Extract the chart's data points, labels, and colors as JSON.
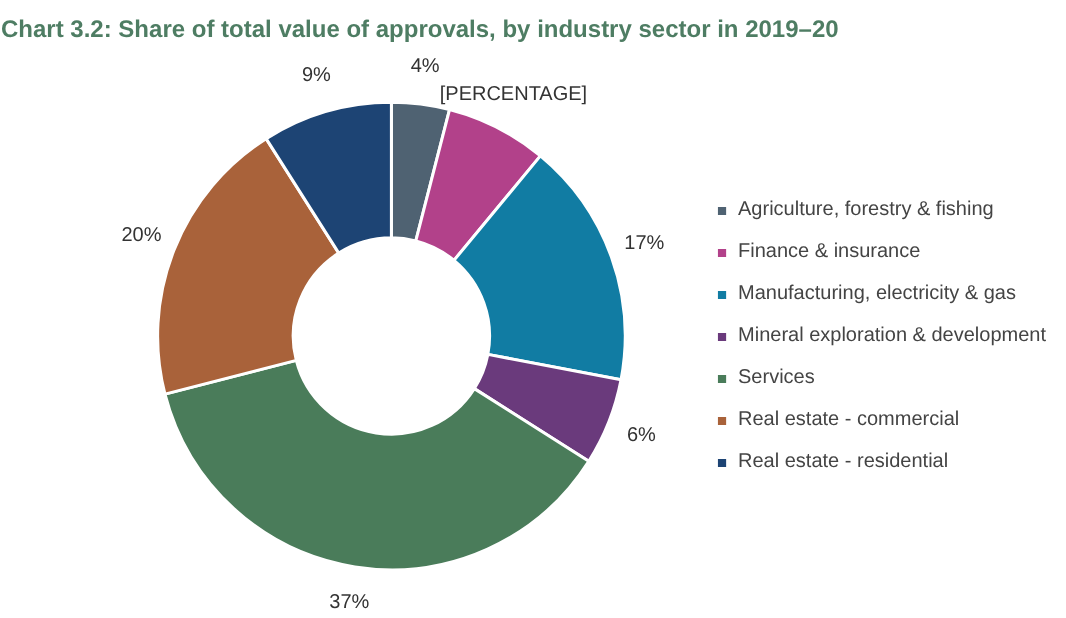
{
  "chart_data": {
    "type": "donut",
    "title": "Chart 3.2: Share of total value of approvals, by industry sector in 2019–20",
    "categories": [
      "Agriculture, forestry & fishing",
      "Finance & insurance",
      "Manufacturing, electricity & gas",
      "Mineral exploration & development",
      "Services",
      "Real estate - commercial",
      "Real estate - residential"
    ],
    "values": [
      4,
      7,
      17,
      6,
      37,
      20,
      9
    ],
    "colors": [
      "#4f6272",
      "#b2418a",
      "#117ca3",
      "#6a3a7c",
      "#4a7c5a",
      "#a9623a",
      "#1d4474"
    ],
    "value_labels": [
      "4%",
      "[PERCENTAGE]",
      "17%",
      "6%",
      "37%",
      "20%",
      "9%"
    ],
    "legend": "right"
  }
}
